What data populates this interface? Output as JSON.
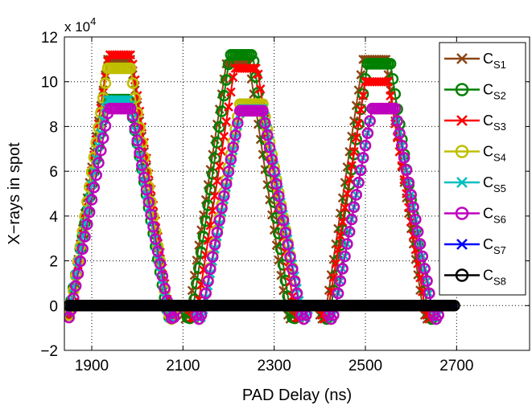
{
  "chart_data": {
    "type": "line",
    "xlabel": "PAD Delay (ns)",
    "ylabel": "X−rays in spot",
    "y_multiplier_label": "x 10",
    "y_multiplier_exponent": "4",
    "xlim": [
      1840,
      2860
    ],
    "ylim": [
      -2,
      12
    ],
    "x_ticks": [
      1900,
      2100,
      2300,
      2500,
      2700
    ],
    "x_tick_labels": [
      "1900",
      "2100",
      "2300",
      "2500",
      "2700"
    ],
    "y_ticks": [
      -2,
      0,
      2,
      4,
      6,
      8,
      10,
      12
    ],
    "y_tick_labels": [
      "−2",
      "0",
      "2",
      "4",
      "6",
      "8",
      "10",
      "12"
    ],
    "grid": true,
    "legend_position": "top-right",
    "x_start": 1850,
    "x_step": 5,
    "series": [
      {
        "name": "C",
        "sub": "S1",
        "color": "#8B4513",
        "marker": "x",
        "peaks": [
          [
            1960,
            11.0
          ],
          [
            2220,
            10.8
          ],
          [
            2520,
            11.0
          ]
        ]
      },
      {
        "name": "C",
        "sub": "S2",
        "color": "#008000",
        "marker": "o",
        "peaks": [
          [
            1958,
            9.2
          ],
          [
            2228,
            11.2
          ],
          [
            2530,
            10.8
          ]
        ]
      },
      {
        "name": "C",
        "sub": "S3",
        "color": "#FF0000",
        "marker": "x",
        "peaks": [
          [
            1962,
            11.2
          ],
          [
            2238,
            10.6
          ],
          [
            2525,
            10.0
          ]
        ]
      },
      {
        "name": "C",
        "sub": "S4",
        "color": "#BFBF00",
        "marker": "o",
        "peaks": [
          [
            1960,
            10.6
          ],
          [
            2250,
            9.0
          ],
          [
            2540,
            8.8
          ]
        ]
      },
      {
        "name": "C",
        "sub": "S5",
        "color": "#00BFBF",
        "marker": "x",
        "peaks": [
          [
            1958,
            9.2
          ],
          [
            2252,
            8.8
          ],
          [
            2540,
            8.8
          ]
        ]
      },
      {
        "name": "C",
        "sub": "S6",
        "color": "#BF00BF",
        "marker": "o",
        "peaks": [
          [
            1962,
            8.8
          ],
          [
            2250,
            8.7
          ],
          [
            2540,
            8.8
          ]
        ]
      },
      {
        "name": "C",
        "sub": "S7",
        "color": "#0000FF",
        "marker": "x",
        "peaks": [],
        "line_end": 2695
      },
      {
        "name": "C",
        "sub": "S8",
        "color": "#000000",
        "marker": "o",
        "peaks": [],
        "line_end": 2695
      }
    ]
  }
}
